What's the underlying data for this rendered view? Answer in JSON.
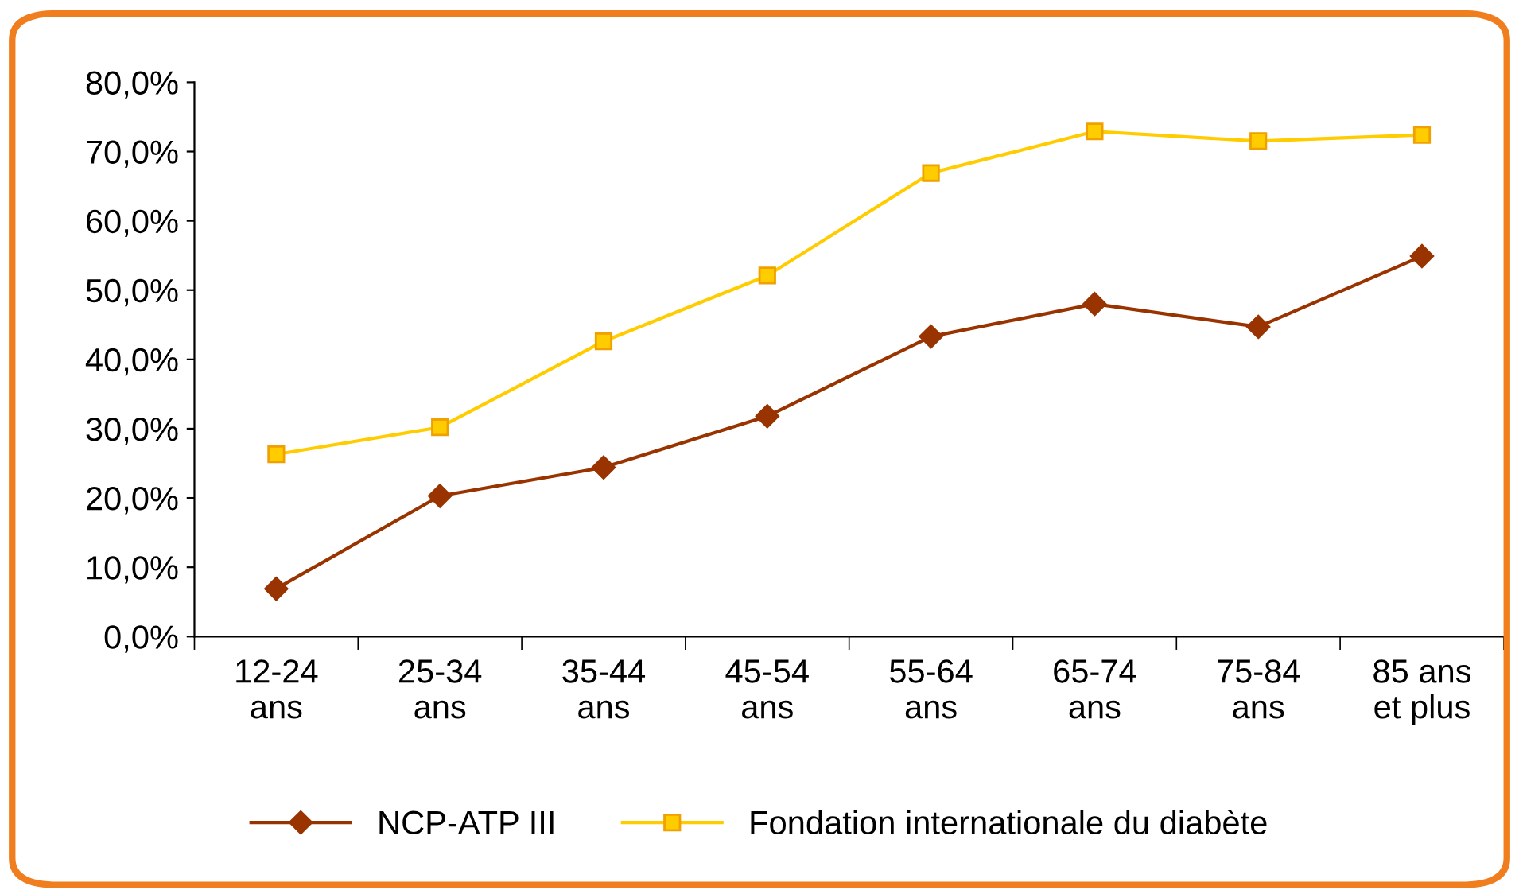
{
  "chart_data": {
    "type": "line",
    "categories": [
      "12-24\nans",
      "25-34\nans",
      "35-44\nans",
      "45-54\nans",
      "55-64\nans",
      "65-74\nans",
      "75-84\nans",
      "85 ans\net plus"
    ],
    "series": [
      {
        "name": "NCP-ATP III",
        "color": "#993300",
        "marker": "diamond",
        "values": [
          6.9,
          20.3,
          24.4,
          31.8,
          43.3,
          48.0,
          44.7,
          54.9
        ]
      },
      {
        "name": "Fondation internationale du diabète",
        "color": "#ffcc00",
        "marker": "square",
        "values": [
          26.3,
          30.2,
          42.6,
          52.1,
          66.9,
          72.9,
          71.5,
          72.4
        ]
      }
    ],
    "ylim": [
      0,
      80
    ],
    "yticks": [
      {
        "value": 0,
        "label": "0,0%"
      },
      {
        "value": 10,
        "label": "10,0%"
      },
      {
        "value": 20,
        "label": "20,0%"
      },
      {
        "value": 30,
        "label": "30,0%"
      },
      {
        "value": 40,
        "label": "40,0%"
      },
      {
        "value": 50,
        "label": "50,0%"
      },
      {
        "value": 60,
        "label": "60,0%"
      },
      {
        "value": 70,
        "label": "70,0%"
      },
      {
        "value": 80,
        "label": "80,0%"
      }
    ],
    "grid": false,
    "legend": "bottom",
    "line_style": "solid"
  }
}
